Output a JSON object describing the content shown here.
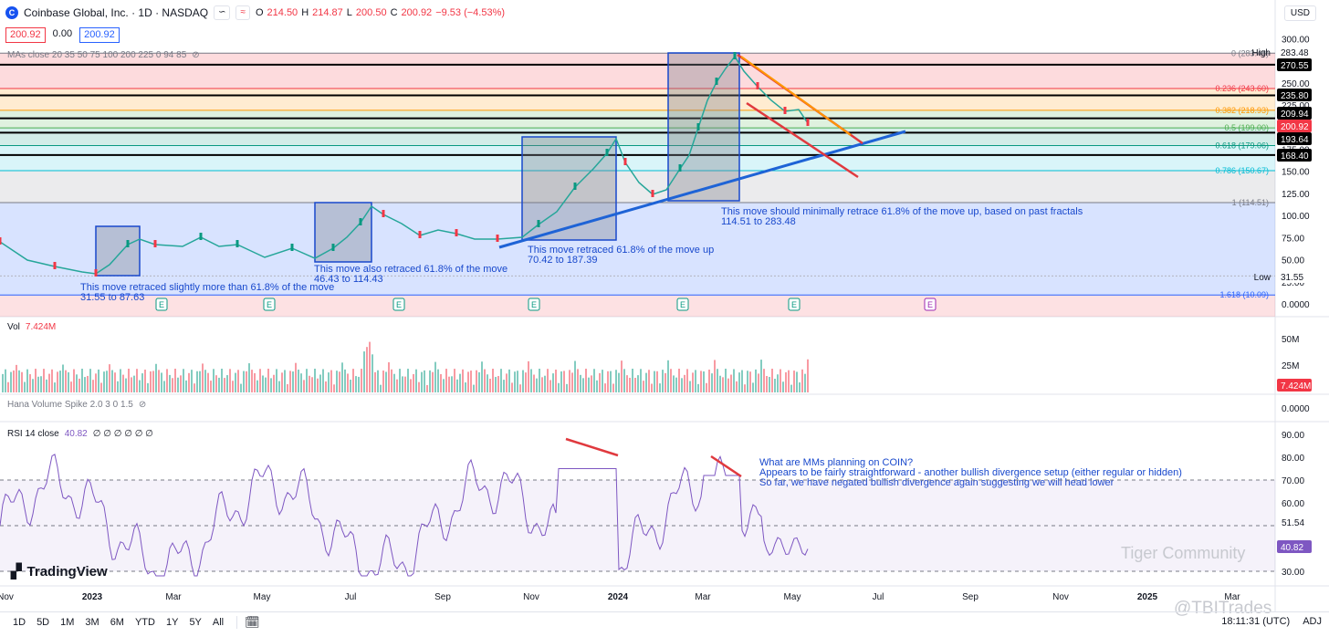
{
  "header": {
    "symbol_title": "Coinbase Global, Inc. · 1D · NASDAQ",
    "ohlc": {
      "o_label": "O",
      "o": "214.50",
      "h_label": "H",
      "h": "214.87",
      "l_label": "L",
      "l": "200.50",
      "c_label": "C",
      "c": "200.92",
      "change": "−9.53 (−4.53%)"
    },
    "bid": "200.92",
    "spread": "0.00",
    "ask": "200.92",
    "currency": "USD"
  },
  "indicators": {
    "mas_label": "MAs close 20 35 50 75 100 200 225 0 94 85",
    "vol_label": "Vol",
    "vol_value": "7.424M",
    "hana_label": "Hana Volume Spike 2.0 3 0 1.5",
    "rsi_label": "RSI 14 close",
    "rsi_value": "40.82",
    "rsi_params": "∅ ∅ ∅ ∅ ∅ ∅"
  },
  "price_axis": {
    "ticks": [
      "300.00",
      "275.00",
      "250.00",
      "225.00",
      "200.00",
      "175.00",
      "150.00",
      "125.00",
      "100.00",
      "75.00",
      "50.00",
      "25.00",
      "0.0000"
    ],
    "badges": [
      {
        "text": "283.48",
        "bg": "#ffffff",
        "fg": "#131722",
        "label": "High"
      },
      {
        "text": "270.55",
        "bg": "#000000",
        "fg": "#ffffff"
      },
      {
        "text": "235.80",
        "bg": "#000000",
        "fg": "#ffffff"
      },
      {
        "text": "209.94",
        "bg": "#000000",
        "fg": "#ffffff"
      },
      {
        "text": "200.92",
        "bg": "#f23645",
        "fg": "#ffffff"
      },
      {
        "text": "193.64",
        "bg": "#000000",
        "fg": "#ffffff"
      },
      {
        "text": "168.40",
        "bg": "#000000",
        "fg": "#ffffff"
      },
      {
        "text": "31.55",
        "bg": "#ffffff",
        "fg": "#131722",
        "label": "Low"
      }
    ]
  },
  "fib_levels": [
    {
      "label": "0 (283.48)",
      "price": 283.48,
      "color": "#787b86"
    },
    {
      "label": "0.236 (243.60)",
      "price": 243.6,
      "color": "#f23645"
    },
    {
      "label": "0.382 (218.93)",
      "price": 218.93,
      "color": "#ff9800"
    },
    {
      "label": "0.5 (199.00)",
      "price": 199.0,
      "color": "#4caf50"
    },
    {
      "label": "0.618 (179.06)",
      "price": 179.06,
      "color": "#089981"
    },
    {
      "label": "0.786 (150.67)",
      "price": 150.67,
      "color": "#00bcd4"
    },
    {
      "label": "1 (114.51)",
      "price": 114.51,
      "color": "#787b86"
    },
    {
      "label": "1.618 (10.09)",
      "price": 10.09,
      "color": "#2962ff"
    }
  ],
  "annotations": [
    {
      "lines": [
        "This move retraced slightly more than 61.8% of the move",
        "31.55 to 87.63"
      ]
    },
    {
      "lines": [
        "This move also retraced 61.8% of the move",
        "46.43 to 114.43"
      ]
    },
    {
      "lines": [
        "This move retraced 61.8% of the move up",
        "70.42 to 187.39"
      ]
    },
    {
      "lines": [
        "This move should minimally retrace 61.8% of the move up, based on past fractals",
        "114.51 to 283.48"
      ]
    },
    {
      "lines": [
        "What are MMs planning on COIN?",
        "Appears to be fairly straightforward - another bullish divergence setup (either regular or hidden)",
        "So far, we have negated bullish divergence again suggesting we will head lower"
      ]
    }
  ],
  "vol_axis": {
    "ticks": [
      "50M",
      "25M"
    ],
    "current": "7.424M"
  },
  "hana_axis": {
    "tick": "0.0000"
  },
  "rsi_axis": {
    "ticks": [
      "90.00",
      "80.00",
      "70.00",
      "60.00",
      "51.54",
      "40.90",
      "30.00"
    ],
    "current": "40.82"
  },
  "time_axis": [
    "Nov",
    "2023",
    "Mar",
    "May",
    "Jul",
    "Sep",
    "Nov",
    "2024",
    "Mar",
    "May",
    "Jul",
    "Sep",
    "Nov",
    "2025",
    "Mar"
  ],
  "earnings_marker": "E",
  "branding": {
    "tradingview": "TradingView",
    "watermark1": "Tiger Community",
    "watermark2": "@TBITrades"
  },
  "timeframes": [
    "1D",
    "5D",
    "1M",
    "3M",
    "6M",
    "YTD",
    "1Y",
    "5Y",
    "All"
  ],
  "clock": {
    "time": "18:11:31 (UTC)",
    "adj": "ADJ"
  }
}
